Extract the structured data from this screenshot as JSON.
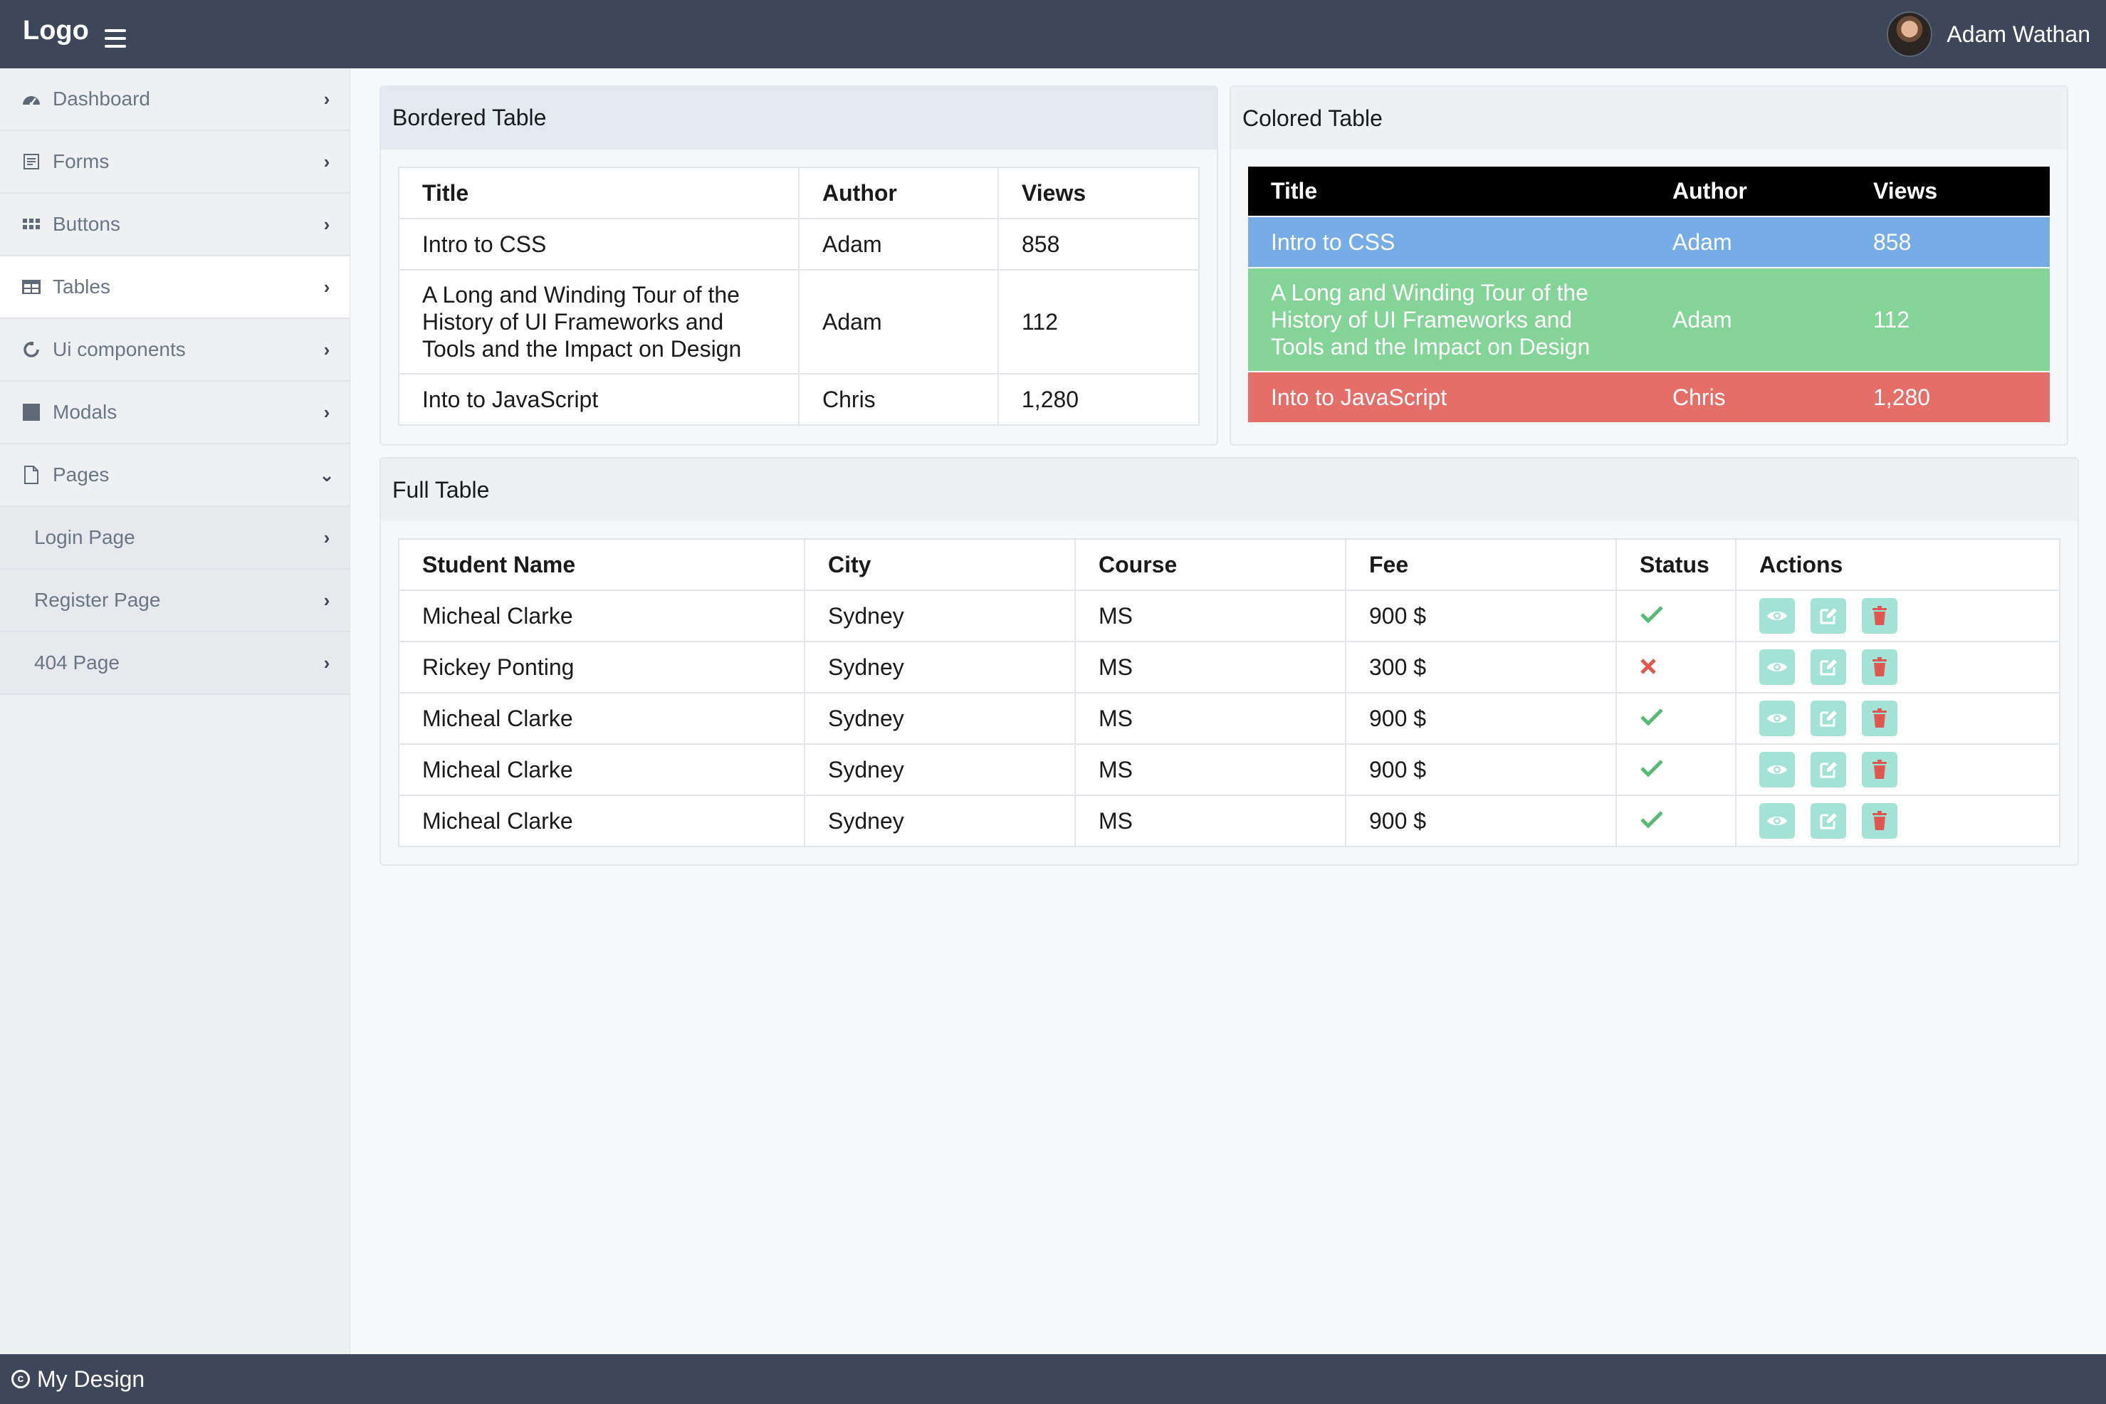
{
  "header": {
    "logo": "Logo",
    "user_name": "Adam Wathan"
  },
  "sidebar": {
    "items": [
      {
        "label": "Dashboard",
        "icon": "dashboard-icon"
      },
      {
        "label": "Forms",
        "icon": "form-icon"
      },
      {
        "label": "Buttons",
        "icon": "grid-icon"
      },
      {
        "label": "Tables",
        "icon": "table-icon",
        "active": true
      },
      {
        "label": "Ui components",
        "icon": "puzzle-icon"
      },
      {
        "label": "Modals",
        "icon": "square-icon"
      },
      {
        "label": "Pages",
        "icon": "file-icon",
        "expanded": true
      }
    ],
    "sub_items": [
      {
        "label": "Login Page"
      },
      {
        "label": "Register Page"
      },
      {
        "label": "404 Page"
      }
    ]
  },
  "bordered_table": {
    "title": "Bordered Table",
    "headers": [
      "Title",
      "Author",
      "Views"
    ],
    "rows": [
      [
        "Intro to CSS",
        "Adam",
        "858"
      ],
      [
        "A Long and Winding Tour of the History of UI Frameworks and Tools and the Impact on Design",
        "Adam",
        "112"
      ],
      [
        "Into to JavaScript",
        "Chris",
        "1,280"
      ]
    ]
  },
  "colored_table": {
    "title": "Colored Table",
    "headers": [
      "Title",
      "Author",
      "Views"
    ],
    "rows": [
      [
        "Intro to CSS",
        "Adam",
        "858"
      ],
      [
        "A Long and Winding Tour of the History of UI Frameworks and Tools and the Impact on Design",
        "Adam",
        "112"
      ],
      [
        "Into to JavaScript",
        "Chris",
        "1,280"
      ]
    ],
    "row_colors": [
      "#76ade6",
      "#84d497",
      "#e56f68"
    ],
    "header_color": "#000000"
  },
  "full_table": {
    "title": "Full Table",
    "headers": [
      "Student Name",
      "City",
      "Course",
      "Fee",
      "Status",
      "Actions"
    ],
    "rows": [
      {
        "name": "Micheal Clarke",
        "city": "Sydney",
        "course": "MS",
        "fee": "900 $",
        "status": "check-icon"
      },
      {
        "name": "Rickey Ponting",
        "city": "Sydney",
        "course": "MS",
        "fee": "300 $",
        "status": "cross-icon"
      },
      {
        "name": "Micheal Clarke",
        "city": "Sydney",
        "course": "MS",
        "fee": "900 $",
        "status": "check-icon"
      },
      {
        "name": "Micheal Clarke",
        "city": "Sydney",
        "course": "MS",
        "fee": "900 $",
        "status": "check-icon"
      },
      {
        "name": "Micheal Clarke",
        "city": "Sydney",
        "course": "MS",
        "fee": "900 $",
        "status": "check-icon"
      }
    ],
    "action_icons": [
      "eye-icon",
      "edit-icon",
      "trash-icon"
    ]
  },
  "footer": {
    "text": "My Design"
  },
  "colors": {
    "topbar": "#3d4759",
    "sidebar": "#eef0f2",
    "action_button": "#a3e3d6",
    "status_ok": "#58b876",
    "status_bad": "#e0574f"
  }
}
